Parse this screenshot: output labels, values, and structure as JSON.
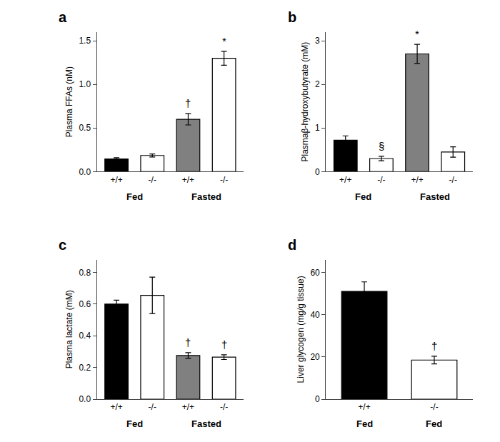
{
  "chart_data": [
    {
      "type": "bar",
      "title": "a",
      "ylabel": "Plasma FFAs (nM)",
      "categories": [
        "+/+",
        "-/-",
        "+/+",
        "-/-"
      ],
      "group_labels": [
        "Fed",
        "Fasted"
      ],
      "values": [
        0.145,
        0.185,
        0.6,
        1.3
      ],
      "errors": [
        0.015,
        0.018,
        0.065,
        0.08
      ],
      "colors": [
        "#000000",
        "#ffffff",
        "#808080",
        "#ffffff"
      ],
      "symbols": [
        null,
        null,
        "†",
        "*"
      ],
      "ylim": [
        0,
        1.6
      ],
      "yticks": [
        {
          "value": 0,
          "label": "0.0"
        },
        0.5,
        {
          "value": 1,
          "label": "1.0"
        },
        1.5
      ],
      "grid": false
    },
    {
      "type": "bar",
      "title": "b",
      "ylabel": "Plasmaβ-hydroxybutyrate (mM)",
      "categories": [
        "+/+",
        "-/-",
        "+/+",
        "-/-"
      ],
      "group_labels": [
        "Fed",
        "Fasted"
      ],
      "values": [
        0.72,
        0.3,
        2.7,
        0.45
      ],
      "errors": [
        0.1,
        0.05,
        0.22,
        0.12
      ],
      "colors": [
        "#000000",
        "#ffffff",
        "#808080",
        "#ffffff"
      ],
      "symbols": [
        null,
        "§",
        "*",
        null
      ],
      "ylim": [
        0,
        3.2
      ],
      "yticks": [
        0,
        1,
        2,
        3
      ],
      "grid": false
    },
    {
      "type": "bar",
      "title": "c",
      "ylabel": "Plasma lactate (mM)",
      "categories": [
        "+/+",
        "-/-",
        "+/+",
        "-/-"
      ],
      "group_labels": [
        "Fed",
        "Fasted"
      ],
      "values": [
        0.6,
        0.655,
        0.275,
        0.265
      ],
      "errors": [
        0.025,
        0.115,
        0.018,
        0.015
      ],
      "colors": [
        "#000000",
        "#ffffff",
        "#808080",
        "#ffffff"
      ],
      "symbols": [
        null,
        null,
        "†",
        "†"
      ],
      "ylim": [
        0,
        0.88
      ],
      "yticks": [
        {
          "value": 0,
          "label": "0.0"
        },
        0.2,
        0.4,
        0.6,
        0.8
      ],
      "grid": false
    },
    {
      "type": "bar",
      "title": "d",
      "ylabel": "Liver glycogen (mg/g tissue)",
      "categories": [
        "+/+",
        "-/-"
      ],
      "group_labels": [
        "Fed",
        "Fed"
      ],
      "values": [
        51.0,
        18.5
      ],
      "errors": [
        4.5,
        1.8
      ],
      "colors": [
        "#000000",
        "#ffffff"
      ],
      "symbols": [
        null,
        "†"
      ],
      "ylim": [
        0,
        66
      ],
      "yticks": [
        0,
        20,
        40,
        60
      ],
      "grid": false
    }
  ]
}
